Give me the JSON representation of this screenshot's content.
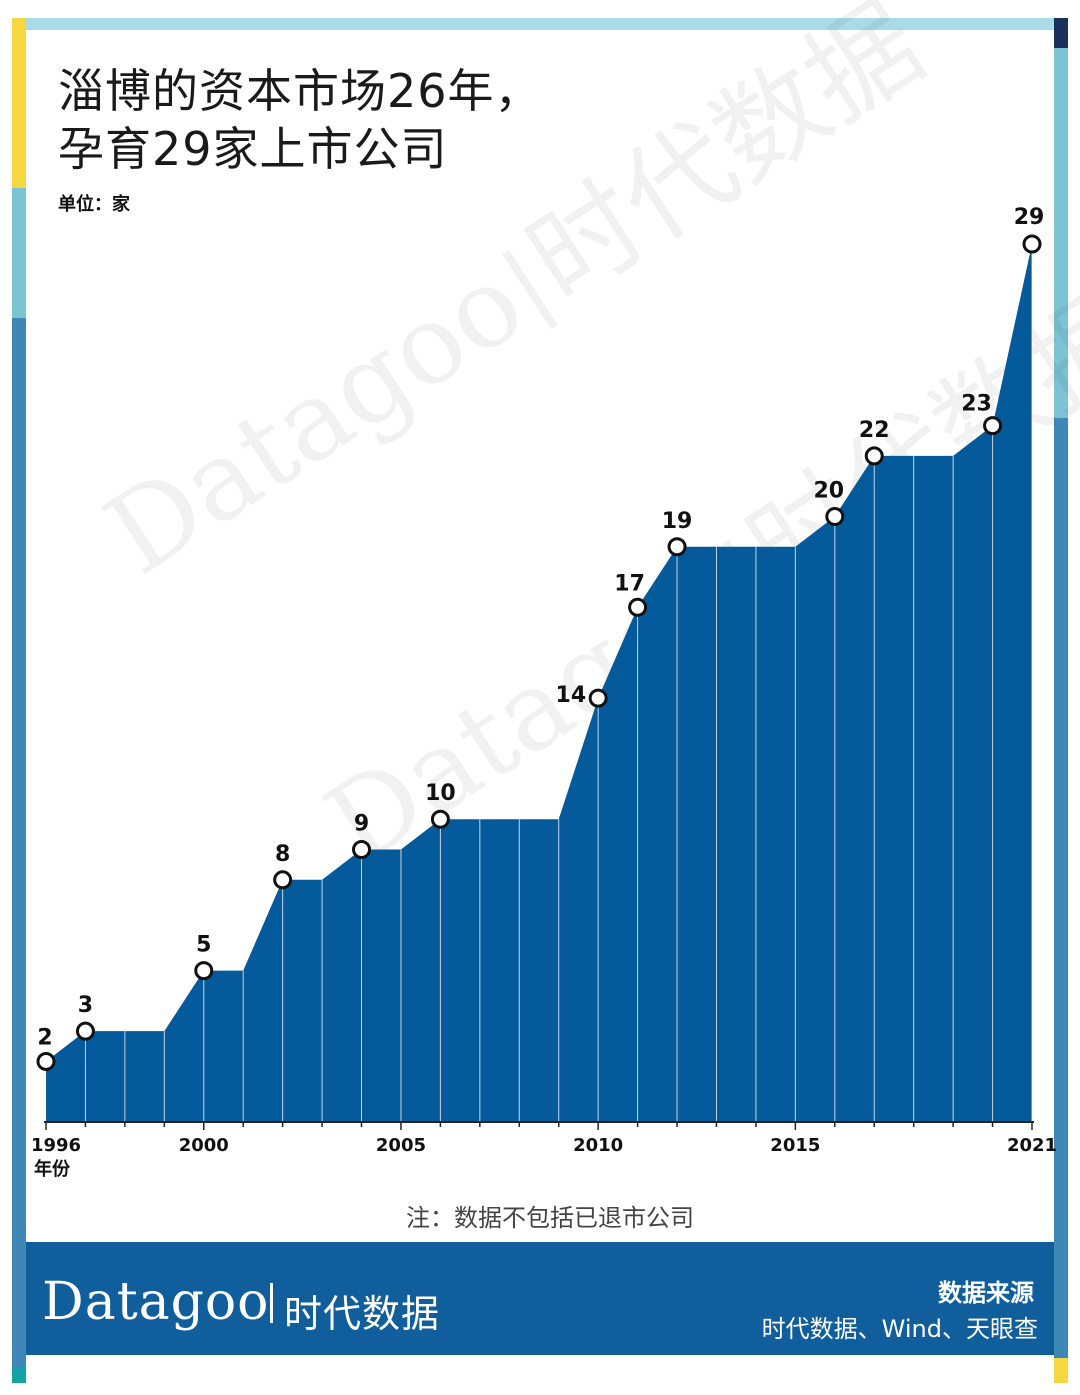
{
  "title_line1": "淄博的资本市场26年，",
  "title_line2": "孕育29家上市公司",
  "unit_label": "单位：家",
  "note": "注：数据不包括已退市公司",
  "brand": {
    "latin": "Datagoo",
    "chinese": "时代数据",
    "watermark": "Datagoo"
  },
  "source": {
    "title": "数据来源",
    "text": "时代数据、Wind、天眼查"
  },
  "colors": {
    "area": "#045a9a",
    "gridline": "#ffffff",
    "point_fill": "#ffffff",
    "point_stroke": "#111111",
    "footer": "#105e9c"
  },
  "chart_data": {
    "type": "area",
    "x": [
      1996,
      1997,
      1998,
      1999,
      2000,
      2001,
      2002,
      2003,
      2004,
      2005,
      2006,
      2007,
      2008,
      2009,
      2010,
      2011,
      2012,
      2013,
      2014,
      2015,
      2016,
      2017,
      2018,
      2019,
      2020,
      2021
    ],
    "values": [
      2,
      3,
      3,
      3,
      5,
      5,
      8,
      8,
      9,
      9,
      10,
      10,
      10,
      10,
      14,
      17,
      19,
      19,
      19,
      19,
      20,
      22,
      22,
      22,
      23,
      29
    ],
    "labeled_years": [
      1996,
      1997,
      2000,
      2002,
      2004,
      2006,
      2010,
      2011,
      2012,
      2016,
      2017,
      2020,
      2021
    ],
    "x_ticks": [
      {
        "value": 1996,
        "label": "1996"
      },
      {
        "value": 2000,
        "label": "2000"
      },
      {
        "value": 2005,
        "label": "2005"
      },
      {
        "value": 2010,
        "label": "2010"
      },
      {
        "value": 2015,
        "label": "2015"
      },
      {
        "value": 2021,
        "label": "2021"
      }
    ],
    "xlabel": "年份",
    "ylabel": "",
    "ylim": [
      0,
      29
    ]
  }
}
